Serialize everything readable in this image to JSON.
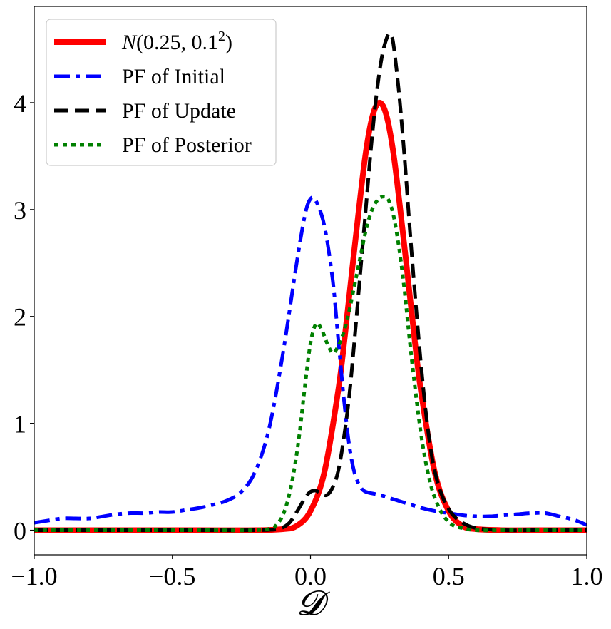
{
  "chart_data": {
    "type": "line",
    "title": "",
    "xlabel": "𝓓",
    "ylabel": "",
    "xlim": [
      -1.0,
      1.0
    ],
    "ylim": [
      -0.23,
      4.9
    ],
    "grid": false,
    "legend_position": "top-left",
    "x_ticks": [
      -1.0,
      -0.5,
      0.0,
      0.5,
      1.0
    ],
    "x_tick_labels": [
      "−1.0",
      "−0.5",
      "0.0",
      "0.5",
      "1.0"
    ],
    "y_ticks": [
      0,
      1,
      2,
      3,
      4
    ],
    "y_tick_labels": [
      "0",
      "1",
      "2",
      "3",
      "4"
    ],
    "series": [
      {
        "name": "N(0.25, 0.1²)",
        "legend_main": "N(0.25, 0.1",
        "legend_sup": "2",
        "legend_end": ")",
        "color": "#ff0000",
        "style": "solid",
        "x": [
          -1.0,
          -0.8,
          -0.6,
          -0.4,
          -0.2,
          -0.1,
          -0.05,
          0.0,
          0.05,
          0.1,
          0.125,
          0.15,
          0.175,
          0.2,
          0.225,
          0.25,
          0.275,
          0.3,
          0.325,
          0.35,
          0.375,
          0.4,
          0.45,
          0.5,
          0.55,
          0.6,
          0.7,
          0.8,
          1.0
        ],
        "y": [
          0.0,
          0.0,
          0.0,
          0.0,
          0.0,
          0.01,
          0.04,
          0.18,
          0.54,
          1.3,
          1.83,
          2.42,
          3.0,
          3.53,
          3.88,
          4.0,
          3.88,
          3.53,
          3.0,
          2.42,
          1.83,
          1.3,
          0.54,
          0.18,
          0.04,
          0.01,
          0.0,
          0.0,
          0.0
        ]
      },
      {
        "name": "PF of Initial",
        "color": "#0000ff",
        "style": "dashdot",
        "x": [
          -1.0,
          -0.95,
          -0.9,
          -0.85,
          -0.8,
          -0.75,
          -0.7,
          -0.65,
          -0.6,
          -0.55,
          -0.5,
          -0.45,
          -0.4,
          -0.35,
          -0.3,
          -0.25,
          -0.2,
          -0.15,
          -0.1,
          -0.05,
          -0.02,
          0.0,
          0.02,
          0.05,
          0.08,
          0.1,
          0.12,
          0.14,
          0.16,
          0.18,
          0.2,
          0.25,
          0.3,
          0.35,
          0.4,
          0.45,
          0.5,
          0.55,
          0.6,
          0.65,
          0.7,
          0.75,
          0.8,
          0.85,
          0.9,
          0.95,
          1.0
        ],
        "y": [
          0.07,
          0.09,
          0.11,
          0.11,
          0.11,
          0.13,
          0.15,
          0.16,
          0.16,
          0.17,
          0.17,
          0.19,
          0.21,
          0.24,
          0.28,
          0.36,
          0.55,
          0.95,
          1.65,
          2.5,
          2.95,
          3.1,
          3.08,
          2.85,
          2.35,
          1.8,
          1.25,
          0.8,
          0.53,
          0.41,
          0.36,
          0.33,
          0.29,
          0.25,
          0.21,
          0.18,
          0.16,
          0.14,
          0.13,
          0.13,
          0.14,
          0.15,
          0.16,
          0.16,
          0.13,
          0.1,
          0.05
        ]
      },
      {
        "name": "PF of Update",
        "color": "#000000",
        "style": "dashed",
        "x": [
          -1.0,
          -0.8,
          -0.6,
          -0.4,
          -0.2,
          -0.12,
          -0.08,
          -0.05,
          -0.02,
          0.0,
          0.02,
          0.04,
          0.06,
          0.08,
          0.1,
          0.12,
          0.14,
          0.16,
          0.18,
          0.2,
          0.22,
          0.24,
          0.26,
          0.28,
          0.29,
          0.3,
          0.32,
          0.34,
          0.36,
          0.38,
          0.4,
          0.42,
          0.44,
          0.46,
          0.48,
          0.5,
          0.52,
          0.55,
          0.6,
          0.7,
          0.8,
          1.0
        ],
        "y": [
          0.0,
          0.0,
          0.0,
          0.0,
          0.0,
          0.01,
          0.06,
          0.17,
          0.3,
          0.36,
          0.37,
          0.34,
          0.33,
          0.4,
          0.55,
          0.85,
          1.25,
          1.8,
          2.4,
          3.0,
          3.6,
          4.1,
          4.45,
          4.63,
          4.63,
          4.55,
          4.1,
          3.5,
          2.8,
          2.15,
          1.55,
          1.05,
          0.68,
          0.45,
          0.3,
          0.2,
          0.13,
          0.07,
          0.02,
          0.0,
          0.0,
          0.0
        ]
      },
      {
        "name": "PF of Posterior",
        "color": "#008000",
        "style": "dotted",
        "x": [
          -1.0,
          -0.8,
          -0.6,
          -0.4,
          -0.2,
          -0.14,
          -0.12,
          -0.1,
          -0.08,
          -0.06,
          -0.04,
          -0.02,
          0.0,
          0.02,
          0.04,
          0.06,
          0.08,
          0.1,
          0.12,
          0.14,
          0.16,
          0.18,
          0.2,
          0.22,
          0.24,
          0.26,
          0.28,
          0.3,
          0.32,
          0.34,
          0.36,
          0.38,
          0.4,
          0.42,
          0.44,
          0.46,
          0.48,
          0.5,
          0.52,
          0.55,
          0.6,
          0.7,
          0.8,
          1.0
        ],
        "y": [
          0.0,
          0.0,
          0.0,
          0.0,
          0.0,
          0.02,
          0.06,
          0.14,
          0.3,
          0.55,
          0.9,
          1.35,
          1.75,
          1.93,
          1.88,
          1.75,
          1.66,
          1.72,
          1.85,
          2.05,
          2.3,
          2.55,
          2.8,
          2.98,
          3.08,
          3.12,
          3.1,
          2.95,
          2.65,
          2.25,
          1.75,
          1.3,
          0.9,
          0.6,
          0.38,
          0.24,
          0.14,
          0.08,
          0.04,
          0.02,
          0.0,
          0.0,
          0.0,
          0.0
        ]
      }
    ]
  }
}
